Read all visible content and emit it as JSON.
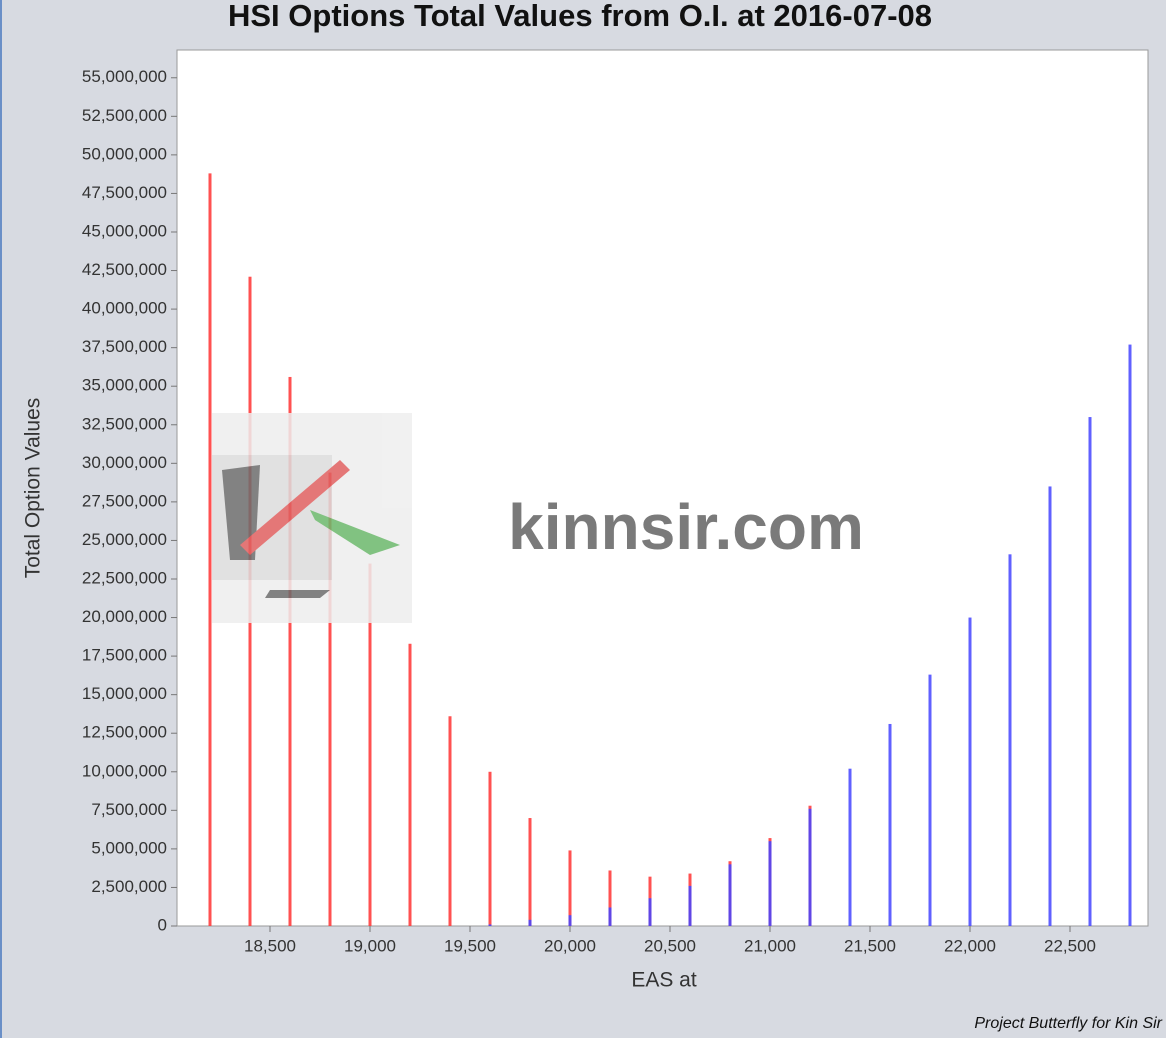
{
  "chart_data": {
    "type": "bar",
    "title": "HSI Options Total Values from O.I. at 2016-07-08",
    "x_label": "EAS at",
    "y_label": "Total Option Values",
    "watermark": "kinnsir.com",
    "footer": "Project Butterfly for Kin Sir",
    "x": [
      18200,
      18400,
      18600,
      18800,
      19000,
      19200,
      19400,
      19600,
      19800,
      20000,
      20200,
      20400,
      20600,
      20800,
      21000,
      21200,
      21400,
      21600,
      21800,
      22000,
      22200,
      22400,
      22600,
      22800
    ],
    "series": [
      {
        "color": "#ff3333",
        "values": [
          48800000,
          42100000,
          35600000,
          29400000,
          23500000,
          18300000,
          13600000,
          10000000,
          7000000,
          4900000,
          3600000,
          3200000,
          3400000,
          4200000,
          5700000,
          7800000,
          0,
          0,
          0,
          0,
          0,
          0,
          0,
          0
        ]
      },
      {
        "color": "#4444ff",
        "values": [
          0,
          0,
          0,
          0,
          0,
          0,
          0,
          100000,
          400000,
          700000,
          1200000,
          1800000,
          2600000,
          4000000,
          5500000,
          7600000,
          10200000,
          13100000,
          16300000,
          20000000,
          24100000,
          28500000,
          33000000,
          37700000
        ]
      }
    ],
    "xlim": [
      18035,
      22890
    ],
    "ylim": [
      0,
      56800000
    ],
    "xticks": [
      {
        "value": 18500,
        "label": "18,500"
      },
      {
        "value": 19000,
        "label": "19,000"
      },
      {
        "value": 19500,
        "label": "19,500"
      },
      {
        "value": 20000,
        "label": "20,000"
      },
      {
        "value": 20500,
        "label": "20,500"
      },
      {
        "value": 21000,
        "label": "21,000"
      },
      {
        "value": 21500,
        "label": "21,500"
      },
      {
        "value": 22000,
        "label": "22,000"
      },
      {
        "value": 22500,
        "label": "22,500"
      }
    ],
    "yticks": [
      0,
      {
        "value": 2500000,
        "label": "2,500,000"
      },
      {
        "value": 5000000,
        "label": "5,000,000"
      },
      {
        "value": 7500000,
        "label": "7,500,000"
      },
      {
        "value": 10000000,
        "label": "10,000,000"
      },
      {
        "value": 12500000,
        "label": "12,500,000"
      },
      {
        "value": 15000000,
        "label": "15,000,000"
      },
      {
        "value": 17500000,
        "label": "17,500,000"
      },
      {
        "value": 20000000,
        "label": "20,000,000"
      },
      {
        "value": 22500000,
        "label": "22,500,000"
      },
      {
        "value": 25000000,
        "label": "25,000,000"
      },
      {
        "value": 27500000,
        "label": "27,500,000"
      },
      {
        "value": 30000000,
        "label": "30,000,000"
      },
      {
        "value": 32500000,
        "label": "32,500,000"
      },
      {
        "value": 35000000,
        "label": "35,000,000"
      },
      {
        "value": 37500000,
        "label": "37,500,000"
      },
      {
        "value": 40000000,
        "label": "40,000,000"
      },
      {
        "value": 42500000,
        "label": "42,500,000"
      },
      {
        "value": 45000000,
        "label": "45,000,000"
      },
      {
        "value": 47500000,
        "label": "47,500,000"
      },
      {
        "value": 50000000,
        "label": "50,000,000"
      },
      {
        "value": 52500000,
        "label": "52,500,000"
      },
      {
        "value": 55000000,
        "label": "55,000,000"
      }
    ]
  }
}
